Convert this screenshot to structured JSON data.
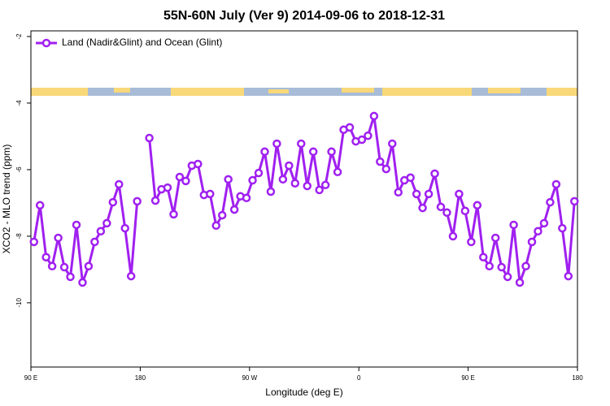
{
  "chart_data": {
    "type": "line",
    "title": "55N-60N July (Ver 9)   2014-09-06 to 2018-12-31",
    "x_label": "Longitude (deg E)",
    "y_label": "XCO2 - MLO trend (ppm)",
    "x": [
      92.5,
      97.5,
      102.5,
      107.5,
      112.5,
      117.5,
      122.5,
      127.5,
      132.5,
      137.5,
      142.5,
      147.5,
      152.5,
      157.5,
      162.5,
      167.5,
      172.5,
      177.5,
      182.5,
      187.5,
      192.5,
      197.5,
      202.5,
      207.5,
      212.5,
      217.5,
      222.5,
      227.5,
      232.5,
      237.5,
      242.5,
      247.5,
      252.5,
      257.5,
      262.5,
      267.5,
      272.5,
      277.5,
      282.5,
      287.5,
      292.5,
      297.5,
      302.5,
      307.5,
      312.5,
      317.5,
      322.5,
      327.5,
      332.5,
      337.5,
      342.5,
      347.5,
      352.5,
      357.5,
      362.5,
      367.5,
      372.5,
      377.5,
      382.5,
      387.5,
      392.5,
      397.5,
      402.5,
      407.5,
      412.5,
      417.5,
      422.5,
      427.5,
      432.5,
      437.5,
      442.5,
      447.5,
      452.5,
      457.5,
      462.5,
      467.5,
      472.5,
      477.5,
      482.5,
      487.5,
      492.5,
      497.5,
      502.5,
      507.5,
      512.5,
      517.5,
      522.5,
      527.5,
      532.5,
      537.5
    ],
    "series": [
      {
        "name": "Land (Nadir&Glint) and Ocean (Glint)",
        "color": "#a020f0",
        "values": [
          -8.17,
          -7.07,
          -8.63,
          -8.9,
          -8.05,
          -8.93,
          -9.22,
          -7.66,
          -9.39,
          -8.9,
          -8.17,
          -7.85,
          -7.61,
          -6.98,
          -6.44,
          -7.76,
          -9.2,
          -6.95,
          null,
          -5.05,
          -6.93,
          -6.59,
          -6.54,
          -7.34,
          -6.22,
          -6.34,
          -5.88,
          -5.83,
          -6.76,
          -6.73,
          -7.68,
          -7.37,
          -6.29,
          -7.2,
          -6.8,
          -6.85,
          -6.32,
          -6.1,
          -5.46,
          -6.66,
          -5.22,
          -6.29,
          -5.88,
          -6.41,
          -5.22,
          -6.49,
          -5.46,
          -6.61,
          -6.46,
          -5.46,
          -6.07,
          -4.8,
          -4.73,
          -5.15,
          -5.1,
          -4.98,
          -4.39,
          -5.76,
          -5.98,
          -5.22,
          -6.68,
          -6.32,
          -6.24,
          -6.73,
          -7.15,
          -6.73,
          -6.12,
          -7.12,
          -7.29,
          -8.0,
          -6.73,
          -7.24,
          -8.17,
          -7.07,
          -8.63,
          -8.9,
          -8.05,
          -8.93,
          -9.22,
          -7.66,
          -9.39,
          -8.9,
          -8.17,
          -7.85,
          -7.61,
          -6.98,
          -6.44,
          -7.76,
          -9.2,
          -6.95
        ]
      }
    ],
    "xlim": [
      90,
      540
    ],
    "xticks": [
      {
        "value": 90,
        "label": "90 E"
      },
      180,
      {
        "value": 270,
        "label": "90 W"
      },
      {
        "value": 360,
        "label": "0"
      },
      {
        "value": 450,
        "label": "90 E"
      },
      {
        "value": 540,
        "label": "180"
      }
    ],
    "ylim": [
      -11.93,
      -1.83
    ],
    "yticks": [
      -2,
      -4,
      -6,
      -8,
      -10
    ],
    "legend": "top-left"
  }
}
